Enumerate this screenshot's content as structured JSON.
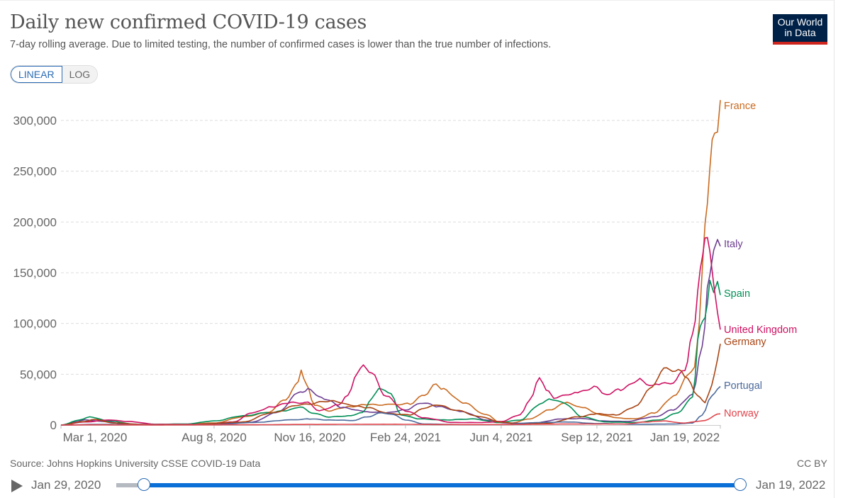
{
  "header": {
    "title": "Daily new confirmed COVID-19 cases",
    "subtitle": "7-day rolling average. Due to limited testing, the number of confirmed cases is lower than the true number of infections.",
    "logo_line1": "Our World",
    "logo_line2": "in Data"
  },
  "scale_toggle": {
    "options": [
      "LINEAR",
      "LOG"
    ],
    "selected": "LINEAR"
  },
  "footer": {
    "source": "Source: Johns Hopkins University CSSE COVID-19 Data",
    "license": "CC BY"
  },
  "timeline": {
    "start_label": "Jan 29, 2020",
    "end_label": "Jan 19, 2022",
    "play_icon": "play-icon"
  },
  "chart_data": {
    "type": "line",
    "title": "Daily new confirmed COVID-19 cases",
    "subtitle": "7-day rolling average",
    "xlabel": "",
    "ylabel": "",
    "x_unit": "days since Mar 1, 2020",
    "xlim": [
      0,
      689
    ],
    "ylim": [
      0,
      320000
    ],
    "y_ticks": [
      0,
      50000,
      100000,
      150000,
      200000,
      250000,
      300000
    ],
    "y_tick_labels": [
      "0",
      "50,000",
      "100,000",
      "150,000",
      "200,000",
      "250,000",
      "300,000"
    ],
    "x_ticks": [
      0,
      160,
      260,
      360,
      460,
      560,
      689
    ],
    "x_tick_labels": [
      "Mar 1, 2020",
      "Aug 8, 2020",
      "Nov 16, 2020",
      "Feb 24, 2021",
      "Jun 4, 2021",
      "Sep 12, 2021",
      "Jan 19, 2022"
    ],
    "grid": "horizontal-dashed",
    "legend": "right-inline-labels",
    "series": [
      {
        "name": "France",
        "color": "#c96a20",
        "points": [
          [
            0,
            0
          ],
          [
            20,
            3000
          ],
          [
            40,
            4000
          ],
          [
            70,
            800
          ],
          [
            120,
            500
          ],
          [
            160,
            2000
          ],
          [
            190,
            8000
          ],
          [
            215,
            12000
          ],
          [
            235,
            25000
          ],
          [
            248,
            42000
          ],
          [
            251,
            55000
          ],
          [
            256,
            40000
          ],
          [
            265,
            20000
          ],
          [
            280,
            14000
          ],
          [
            300,
            18000
          ],
          [
            320,
            20000
          ],
          [
            345,
            20000
          ],
          [
            365,
            21000
          ],
          [
            380,
            30000
          ],
          [
            392,
            40000
          ],
          [
            400,
            35000
          ],
          [
            420,
            22000
          ],
          [
            445,
            10000
          ],
          [
            458,
            3000
          ],
          [
            470,
            2000
          ],
          [
            490,
            6000
          ],
          [
            510,
            15000
          ],
          [
            529,
            22000
          ],
          [
            545,
            17000
          ],
          [
            565,
            10000
          ],
          [
            581,
            7000
          ],
          [
            600,
            6000
          ],
          [
            620,
            12000
          ],
          [
            640,
            28000
          ],
          [
            655,
            48000
          ],
          [
            662,
            56000
          ],
          [
            667,
            100000
          ],
          [
            673,
            195000
          ],
          [
            678,
            250000
          ],
          [
            683,
            296000
          ],
          [
            686,
            294000
          ],
          [
            689,
            320000
          ]
        ]
      },
      {
        "name": "Italy",
        "color": "#6d3e91",
        "points": [
          [
            0,
            0
          ],
          [
            15,
            3000
          ],
          [
            25,
            5000
          ],
          [
            45,
            3500
          ],
          [
            70,
            600
          ],
          [
            130,
            300
          ],
          [
            170,
            1500
          ],
          [
            200,
            3000
          ],
          [
            225,
            12000
          ],
          [
            250,
            32000
          ],
          [
            258,
            35000
          ],
          [
            275,
            26000
          ],
          [
            295,
            17000
          ],
          [
            320,
            13000
          ],
          [
            340,
            12000
          ],
          [
            360,
            15000
          ],
          [
            378,
            22000
          ],
          [
            395,
            18000
          ],
          [
            420,
            13000
          ],
          [
            445,
            5000
          ],
          [
            465,
            2000
          ],
          [
            490,
            1500
          ],
          [
            525,
            6000
          ],
          [
            545,
            6500
          ],
          [
            565,
            4000
          ],
          [
            590,
            3500
          ],
          [
            620,
            8000
          ],
          [
            640,
            15000
          ],
          [
            660,
            30000
          ],
          [
            670,
            80000
          ],
          [
            678,
            150000
          ],
          [
            682,
            172000
          ],
          [
            686,
            180000
          ],
          [
            689,
            176000
          ]
        ]
      },
      {
        "name": "Spain",
        "color": "#008f56",
        "points": [
          [
            0,
            0
          ],
          [
            20,
            5000
          ],
          [
            30,
            8000
          ],
          [
            50,
            4000
          ],
          [
            80,
            500
          ],
          [
            130,
            1000
          ],
          [
            160,
            4000
          ],
          [
            190,
            9000
          ],
          [
            215,
            12000
          ],
          [
            235,
            14000
          ],
          [
            250,
            18000
          ],
          [
            262,
            12000
          ],
          [
            280,
            8000
          ],
          [
            300,
            9000
          ],
          [
            315,
            12000
          ],
          [
            325,
            27000
          ],
          [
            332,
            37000
          ],
          [
            345,
            30000
          ],
          [
            355,
            10000
          ],
          [
            375,
            6000
          ],
          [
            400,
            5000
          ],
          [
            430,
            6000
          ],
          [
            458,
            2500
          ],
          [
            480,
            5000
          ],
          [
            500,
            20000
          ],
          [
            510,
            26000
          ],
          [
            525,
            22000
          ],
          [
            545,
            8000
          ],
          [
            570,
            3000
          ],
          [
            600,
            2500
          ],
          [
            625,
            5000
          ],
          [
            645,
            12000
          ],
          [
            660,
            28000
          ],
          [
            668,
            100000
          ],
          [
            673,
            105000
          ],
          [
            678,
            140000
          ],
          [
            682,
            130000
          ],
          [
            686,
            143000
          ],
          [
            689,
            128000
          ]
        ]
      },
      {
        "name": "United Kingdom",
        "color": "#ce1162",
        "points": [
          [
            0,
            0
          ],
          [
            25,
            3000
          ],
          [
            50,
            5000
          ],
          [
            70,
            3500
          ],
          [
            100,
            800
          ],
          [
            150,
            700
          ],
          [
            180,
            3000
          ],
          [
            200,
            12000
          ],
          [
            220,
            18000
          ],
          [
            240,
            22000
          ],
          [
            258,
            22000
          ],
          [
            270,
            14000
          ],
          [
            290,
            20000
          ],
          [
            300,
            30000
          ],
          [
            310,
            50000
          ],
          [
            316,
            60000
          ],
          [
            325,
            50000
          ],
          [
            340,
            28000
          ],
          [
            360,
            14000
          ],
          [
            380,
            7000
          ],
          [
            410,
            2500
          ],
          [
            440,
            2500
          ],
          [
            460,
            3500
          ],
          [
            480,
            10000
          ],
          [
            490,
            25000
          ],
          [
            500,
            48000
          ],
          [
            507,
            35000
          ],
          [
            515,
            27000
          ],
          [
            540,
            32000
          ],
          [
            560,
            38000
          ],
          [
            568,
            30000
          ],
          [
            585,
            35000
          ],
          [
            605,
            45000
          ],
          [
            615,
            40000
          ],
          [
            625,
            40000
          ],
          [
            640,
            42000
          ],
          [
            652,
            55000
          ],
          [
            660,
            90000
          ],
          [
            668,
            150000
          ],
          [
            673,
            185000
          ],
          [
            678,
            175000
          ],
          [
            682,
            140000
          ],
          [
            686,
            110000
          ],
          [
            689,
            94000
          ]
        ]
      },
      {
        "name": "Germany",
        "color": "#a94413",
        "points": [
          [
            0,
            0
          ],
          [
            25,
            3500
          ],
          [
            35,
            5500
          ],
          [
            55,
            2000
          ],
          [
            90,
            500
          ],
          [
            140,
            500
          ],
          [
            190,
            3000
          ],
          [
            220,
            12000
          ],
          [
            250,
            20000
          ],
          [
            285,
            24000
          ],
          [
            300,
            20000
          ],
          [
            320,
            17000
          ],
          [
            345,
            11000
          ],
          [
            365,
            10000
          ],
          [
            380,
            17000
          ],
          [
            395,
            20000
          ],
          [
            410,
            15000
          ],
          [
            440,
            8000
          ],
          [
            458,
            3000
          ],
          [
            480,
            1000
          ],
          [
            510,
            2000
          ],
          [
            540,
            8000
          ],
          [
            560,
            11000
          ],
          [
            580,
            10000
          ],
          [
            600,
            18000
          ],
          [
            615,
            35000
          ],
          [
            630,
            55000
          ],
          [
            645,
            54000
          ],
          [
            655,
            45000
          ],
          [
            665,
            30000
          ],
          [
            673,
            22000
          ],
          [
            680,
            40000
          ],
          [
            686,
            65000
          ],
          [
            689,
            80000
          ]
        ]
      },
      {
        "name": "Portugal",
        "color": "#4c6a9c",
        "points": [
          [
            0,
            0
          ],
          [
            40,
            700
          ],
          [
            80,
            300
          ],
          [
            160,
            300
          ],
          [
            200,
            2500
          ],
          [
            240,
            5000
          ],
          [
            260,
            6000
          ],
          [
            280,
            5000
          ],
          [
            305,
            4500
          ],
          [
            320,
            8000
          ],
          [
            335,
            12000
          ],
          [
            345,
            11000
          ],
          [
            360,
            5000
          ],
          [
            380,
            1000
          ],
          [
            420,
            500
          ],
          [
            460,
            500
          ],
          [
            500,
            2500
          ],
          [
            530,
            3000
          ],
          [
            560,
            1500
          ],
          [
            600,
            700
          ],
          [
            640,
            1000
          ],
          [
            660,
            2000
          ],
          [
            670,
            10000
          ],
          [
            680,
            28000
          ],
          [
            689,
            38000
          ]
        ]
      },
      {
        "name": "Norway",
        "color": "#e0454c",
        "points": [
          [
            0,
            0
          ],
          [
            30,
            200
          ],
          [
            100,
            100
          ],
          [
            200,
            300
          ],
          [
            260,
            600
          ],
          [
            340,
            800
          ],
          [
            400,
            500
          ],
          [
            460,
            500
          ],
          [
            540,
            1000
          ],
          [
            590,
            1000
          ],
          [
            610,
            3000
          ],
          [
            630,
            4000
          ],
          [
            650,
            2000
          ],
          [
            670,
            4000
          ],
          [
            689,
            11000
          ]
        ]
      }
    ]
  }
}
